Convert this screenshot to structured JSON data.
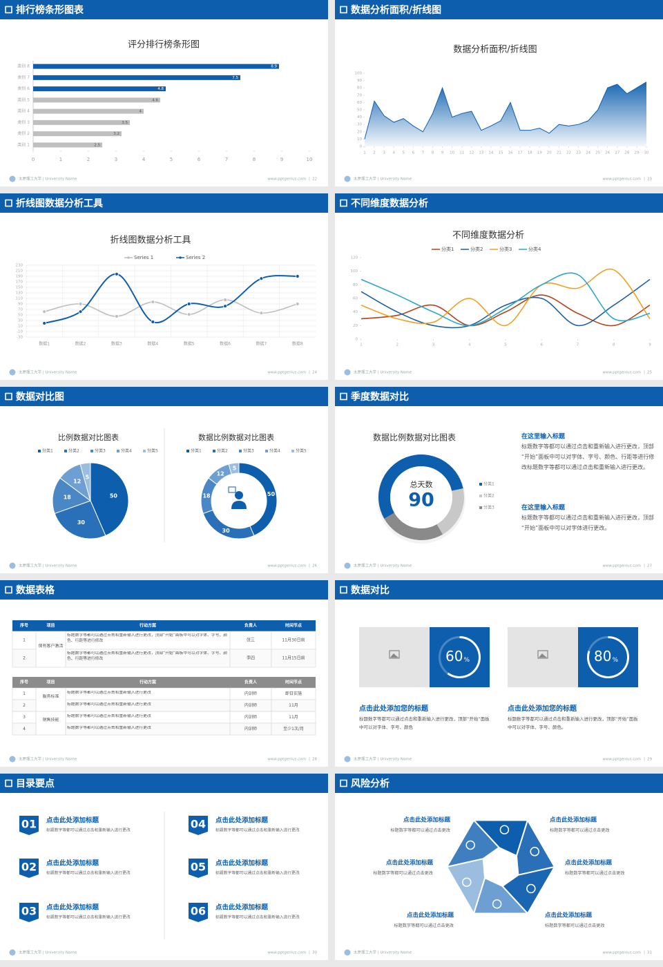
{
  "slides": [
    {
      "title": "排行榜条形图表",
      "footer": "太原理工大学 | University Name",
      "url": "www.pptgenius.com",
      "page": 22,
      "chart_data": {
        "type": "hbar",
        "title": "评分排行榜条形图",
        "categories": [
          "类别 8",
          "类别 7",
          "类别 6",
          "类别 5",
          "类别 4",
          "类别 3",
          "类别 2",
          "类别 1"
        ],
        "values": [
          8.9,
          7.5,
          4.8,
          4.6,
          4,
          3.5,
          3.2,
          2.5
        ],
        "colors": [
          "#0d5fae",
          "#0d5fae",
          "#0d5fae",
          "#bfbfbf",
          "#bfbfbf",
          "#bfbfbf",
          "#bfbfbf",
          "#bfbfbf"
        ],
        "xlim": [
          0,
          10
        ],
        "xticks": [
          0,
          1,
          2,
          3,
          4,
          5,
          6,
          7,
          8,
          9,
          10
        ]
      }
    },
    {
      "title": "数据分析面积/折线图",
      "footer": "太原理工大学 | University Name",
      "url": "www.pptgenius.com",
      "page": 23,
      "chart_data": {
        "type": "area",
        "title": "数据分析面积/折线图",
        "color": "#0d5fae",
        "x": [
          1,
          2,
          3,
          4,
          5,
          6,
          7,
          8,
          9,
          10,
          11,
          12,
          13,
          14,
          15,
          16,
          17,
          18,
          19,
          20,
          21,
          22,
          23,
          24,
          25,
          26,
          27,
          28,
          29,
          30
        ],
        "values": [
          10,
          62,
          42,
          33,
          38,
          28,
          20,
          45,
          80,
          40,
          45,
          48,
          22,
          28,
          35,
          60,
          22,
          22,
          25,
          18,
          30,
          28,
          30,
          35,
          50,
          80,
          85,
          72,
          80,
          88
        ],
        "xlim": [
          1,
          30
        ],
        "xticks": [
          1,
          2,
          3,
          4,
          5,
          6,
          7,
          8,
          9,
          10,
          11,
          12,
          13,
          14,
          15,
          16,
          17,
          18,
          19,
          20,
          21,
          22,
          23,
          24,
          25,
          26,
          27,
          28,
          29,
          30
        ],
        "ylim": [
          0,
          100
        ],
        "yticks": [
          0,
          10,
          20,
          30,
          40,
          50,
          60,
          70,
          80,
          90,
          100
        ]
      }
    },
    {
      "title": "折线图数据分析工具",
      "footer": "太原理工大学 | University Name",
      "url": "www.pptgenius.com",
      "page": 24,
      "chart_data": {
        "type": "line",
        "title": "折线图数据分析工具",
        "smooth": true,
        "markers": true,
        "grid": true,
        "categories": [
          "数据1",
          "数据2",
          "数据3",
          "数据4",
          "数据5",
          "数据6",
          "数据7",
          "数据8"
        ],
        "series": [
          {
            "name": "Series 1",
            "color": "#bfbfbf",
            "values": [
              62,
              90,
              45,
              97,
              52,
              105,
              57,
              90
            ]
          },
          {
            "name": "Series 2",
            "color": "#0d5fae",
            "values": [
              20,
              62,
              198,
              25,
              90,
              82,
              182,
              190
            ]
          }
        ],
        "ylim": [
          -30,
          230
        ],
        "yticks": [
          -30,
          -10,
          10,
          30,
          50,
          70,
          90,
          110,
          130,
          150,
          170,
          190,
          210,
          230
        ]
      }
    },
    {
      "title": "不同维度数据分析",
      "footer": "太原理工大学 | University Name",
      "url": "www.pptgenius.com",
      "page": 25,
      "chart_data": {
        "type": "line",
        "title": "不同维度数据分析",
        "smooth": true,
        "markers": false,
        "grid": false,
        "x": [
          1,
          2,
          3,
          4,
          5,
          6,
          7,
          8,
          9
        ],
        "xlim": [
          1,
          9
        ],
        "xticks": [
          1,
          2,
          3,
          4,
          5,
          6,
          7,
          8,
          9
        ],
        "series": [
          {
            "name": "分类1",
            "color": "#b5411a",
            "values": [
              30,
              35,
              50,
              20,
              40,
              65,
              38,
              20,
              50
            ]
          },
          {
            "name": "分类2",
            "color": "#1a5fa8",
            "values": [
              70,
              40,
              20,
              20,
              50,
              60,
              20,
              50,
              88
            ]
          },
          {
            "name": "分类3",
            "color": "#f0a020",
            "values": [
              50,
              30,
              25,
              60,
              20,
              80,
              75,
              102,
              30
            ]
          },
          {
            "name": "分类4",
            "color": "#2aa8c8",
            "values": [
              88,
              65,
              40,
              20,
              45,
              80,
              95,
              30,
              38
            ]
          }
        ],
        "ylim": [
          0,
          120
        ],
        "yticks": [
          0,
          20,
          40,
          60,
          80,
          100,
          120
        ]
      }
    },
    {
      "title": "数据对比图",
      "footer": "太原理工大学 | University Name",
      "url": "www.pptgenius.com",
      "page": 26,
      "chart_data": [
        {
          "type": "pie",
          "title": "比例数据对比图表",
          "categories": [
            "分类1",
            "分类2",
            "分类3",
            "分类4",
            "分类5"
          ],
          "values": [
            50,
            30,
            18,
            12,
            5
          ],
          "colors": [
            "#0d5fae",
            "#2a70b8",
            "#4a87c5",
            "#6d9fd2",
            "#9bbde0"
          ]
        },
        {
          "type": "donut",
          "title": "数据比例数据对比图表",
          "categories": [
            "分类1",
            "分类2",
            "分类3",
            "分类4",
            "分类5"
          ],
          "values": [
            50,
            30,
            18,
            12,
            5
          ],
          "colors": [
            "#0d5fae",
            "#2a70b8",
            "#4a87c5",
            "#6d9fd2",
            "#9bbde0"
          ]
        }
      ]
    },
    {
      "title": "季度数据对比",
      "footer": "太原理工大学 | University Name",
      "url": "www.pptgenius.com",
      "page": 27,
      "chart_data": {
        "type": "ring",
        "title": "数据比例数据对比图表",
        "center_label": "总天数",
        "center_value": 90,
        "categories": [
          "分类1",
          "分类2",
          "分类3"
        ],
        "values": [
          55,
          20,
          25
        ],
        "colors": [
          "#0d5fae",
          "#c8c8c8",
          "#8a8a8a"
        ]
      },
      "blocks": [
        {
          "heading": "在这里输入标题",
          "text": "标题数字等都可以通过点击和重新输入进行更改，顶部“开始”面板中可以对字体、字号、颜色、行距等进行修改标题数字等都可以通过点击和重新输入进行更改。"
        },
        {
          "heading": "在这里输入标题",
          "text": "标题数字等都可以通过点击和重新输入进行更改，顶部“开始”面板中可以对字体进行更改。"
        }
      ]
    },
    {
      "title": "数据表格",
      "footer": "太原理工大学 | University Name",
      "url": "www.pptgenius.com",
      "page": 28,
      "tables": [
        {
          "header": [
            "序号",
            "项目",
            "行动方案",
            "负责人",
            "时间节点"
          ],
          "groups": [
            {
              "item": "保有客户激活",
              "rows": [
                [
                  1,
                  "标题数字等都可以通过点击和重新输入进行更改，顶部“开始”面板中可以对字体、字号、颜色、行距等进行修改",
                  "张三",
                  "11月30日前"
                ],
                [
                  2,
                  "标题数字等都可以通过点击和重新输入进行更改，顶部“开始”面板中可以对字体、字号、颜色、行距等进行修改",
                  "李四",
                  "11月15日前"
                ]
              ]
            }
          ]
        },
        {
          "header": [
            "序号",
            "项目",
            "行动方案",
            "负责人",
            "时间节点"
          ],
          "groups": [
            {
              "item": "服务标准",
              "rows": [
                [
                  1,
                  "标题数字等都可以通过点击和重新输入进行更改",
                  "内训师",
                  "即日实施"
                ],
                [
                  2,
                  "标题数字等都可以通过点击和重新输入进行更改",
                  "内训师",
                  "11月"
                ]
              ]
            },
            {
              "item": "销售技能",
              "rows": [
                [
                  3,
                  "标题数字等都可以通过点击和重新输入进行更改",
                  "内训师",
                  "11月"
                ],
                [
                  4,
                  "标题数字等都可以通过点击和重新输入进行更改",
                  "内训师",
                  "至少1次/月"
                ]
              ]
            }
          ]
        }
      ]
    },
    {
      "title": "数据对比",
      "footer": "太原理工大学 | University Name",
      "url": "www.pptgenius.com",
      "page": 29,
      "cards": [
        {
          "percent": 60,
          "unit": "%",
          "heading": "点击此处添加您的标题",
          "text": "标题数字等都可以通过点击和重新输入进行更改，顶部“开始”面板中可以对字体、字号、颜色"
        },
        {
          "percent": 80,
          "unit": "%",
          "heading": "点击此处添加您的标题",
          "text": "标题数字等都可以通过点击和重新输入进行更改，顶部“开始”面板中可以对字体、字号、颜色。"
        }
      ]
    },
    {
      "title": "目录要点",
      "footer": "太原理工大学 | University Name",
      "url": "www.pptgenius.com",
      "page": 30,
      "items": [
        {
          "number": "01",
          "heading": "点击此处添加标题",
          "text": "标题数字等都可以通过点击和重新输入进行更改"
        },
        {
          "number": "02",
          "heading": "点击此处添加标题",
          "text": "标题数字等都可以通过点击和重新输入进行更改"
        },
        {
          "number": "03",
          "heading": "点击此处添加标题",
          "text": "标题数字等都可以通过点击和重新输入进行更改"
        },
        {
          "number": "04",
          "heading": "点击此处添加标题",
          "text": "标题数字等都可以通过点击和重新输入进行更改"
        },
        {
          "number": "05",
          "heading": "点击此处添加标题",
          "text": "标题数字等都可以通过点击和重新输入进行更改"
        },
        {
          "number": "06",
          "heading": "点击此处添加标题",
          "text": "标题数字等都可以通过点击和重新输入进行更改"
        }
      ]
    },
    {
      "title": "风险分析",
      "footer": "太原理工大学 | University Name",
      "url": "www.pptgenius.com",
      "page": 31,
      "items": [
        {
          "heading": "点击此处添加标题",
          "text": "标题数字等都可以通过点击更改"
        },
        {
          "heading": "点击此处添加标题",
          "text": "标题数字等都可以通过点击更改"
        },
        {
          "heading": "点击此处添加标题",
          "text": "标题数字等都可以通过点击更改"
        },
        {
          "heading": "点击此处添加标题",
          "text": "标题数字等都可以通过点击更改"
        },
        {
          "heading": "点击此处添加标题",
          "text": "标题数字等都可以通过点击更改"
        },
        {
          "heading": "点击此处添加标题",
          "text": "标题数字等都可以通过点击更改"
        }
      ]
    }
  ]
}
